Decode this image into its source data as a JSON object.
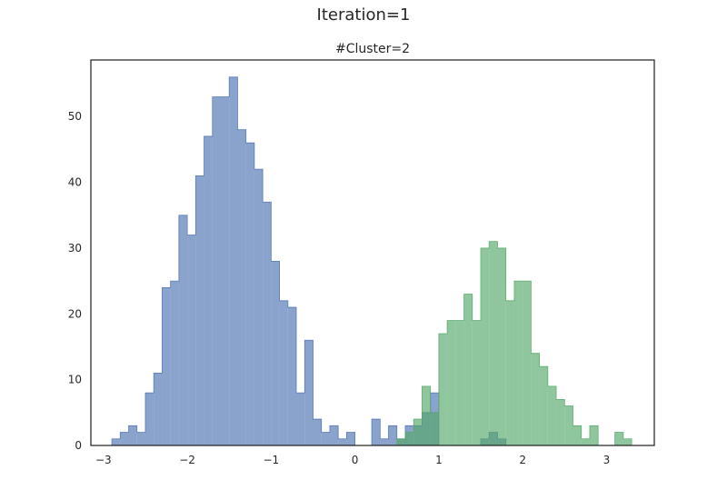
{
  "figure": {
    "suptitle": "Iteration=1"
  },
  "chart_data": {
    "type": "histogram",
    "title": "#Cluster=2",
    "xlabel": "",
    "ylabel": "",
    "xlim": [
      -3.15,
      3.57
    ],
    "ylim": [
      0,
      58.6
    ],
    "grid": false,
    "xticks": [
      -3,
      -2,
      -1,
      0,
      1,
      2,
      3
    ],
    "xtick_labels": [
      "−3",
      "−2",
      "−1",
      "0",
      "1",
      "2",
      "3"
    ],
    "yticks": [
      0,
      10,
      20,
      30,
      40,
      50
    ],
    "ytick_labels": [
      "0",
      "10",
      "20",
      "30",
      "40",
      "50"
    ],
    "bin_width": 0.1,
    "series": [
      {
        "color": "#4c72b0",
        "alpha": 0.65,
        "bin_start": -2.9,
        "counts": [
          1,
          2,
          3,
          2,
          8,
          11,
          24,
          25,
          35,
          32,
          41,
          47,
          53,
          53,
          56,
          48,
          46,
          42,
          37,
          28,
          22,
          21,
          8,
          16,
          4,
          2,
          3,
          1,
          2,
          0,
          0,
          4,
          1,
          3,
          1,
          3,
          3,
          5,
          8,
          0,
          0,
          0,
          0,
          0,
          1,
          2,
          1,
          0
        ]
      },
      {
        "color": "#55a868",
        "alpha": 0.65,
        "bin_start": 0.5,
        "counts": [
          1,
          2,
          4,
          9,
          5,
          17,
          19,
          19,
          23,
          19,
          30,
          31,
          30,
          22,
          25,
          25,
          14,
          12,
          9,
          7,
          6,
          3,
          1,
          3,
          0,
          0,
          2,
          1
        ]
      }
    ]
  }
}
